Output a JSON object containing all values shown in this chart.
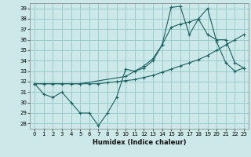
{
  "xlabel": "Humidex (Indice chaleur)",
  "background_color": "#cce8e8",
  "grid_color": "#99cccc",
  "line_color": "#1a6060",
  "xlim": [
    -0.5,
    23.5
  ],
  "ylim": [
    27.5,
    39.5
  ],
  "xticks": [
    0,
    1,
    2,
    3,
    4,
    5,
    6,
    7,
    8,
    9,
    10,
    11,
    12,
    13,
    14,
    15,
    16,
    17,
    18,
    19,
    20,
    21,
    22,
    23
  ],
  "yticks": [
    28,
    29,
    30,
    31,
    32,
    33,
    34,
    35,
    36,
    37,
    38,
    39
  ],
  "line1_x": [
    0,
    1,
    2,
    3,
    4,
    5,
    6,
    7,
    8,
    9,
    10,
    11,
    12,
    13,
    14,
    15,
    16,
    17,
    18,
    19,
    20,
    21,
    22,
    23
  ],
  "line1_y": [
    31.8,
    30.8,
    30.5,
    31.0,
    30.0,
    29.0,
    29.0,
    27.8,
    29.0,
    30.5,
    33.2,
    33.0,
    33.3,
    34.0,
    35.5,
    37.2,
    37.5,
    37.7,
    38.0,
    39.0,
    35.8,
    33.8,
    33.0,
    33.3
  ],
  "line2_x": [
    0,
    1,
    2,
    3,
    4,
    5,
    6,
    7,
    8,
    9,
    10,
    11,
    12,
    13,
    14,
    15,
    16,
    17,
    18,
    19,
    20,
    21,
    22,
    23
  ],
  "line2_y": [
    31.8,
    31.8,
    31.8,
    31.8,
    31.8,
    31.8,
    31.8,
    31.8,
    31.9,
    32.0,
    32.1,
    32.2,
    32.4,
    32.6,
    32.9,
    33.2,
    33.5,
    33.8,
    34.1,
    34.5,
    35.0,
    35.5,
    36.0,
    36.5
  ],
  "line3_x": [
    0,
    1,
    2,
    3,
    4,
    5,
    10,
    11,
    12,
    13,
    14,
    15,
    16,
    17,
    18,
    19,
    20,
    21,
    22,
    23
  ],
  "line3_y": [
    31.8,
    31.8,
    31.8,
    31.8,
    31.8,
    31.8,
    32.5,
    33.0,
    33.5,
    34.2,
    35.5,
    39.1,
    39.2,
    36.5,
    38.0,
    36.5,
    36.0,
    36.0,
    33.8,
    33.3
  ]
}
